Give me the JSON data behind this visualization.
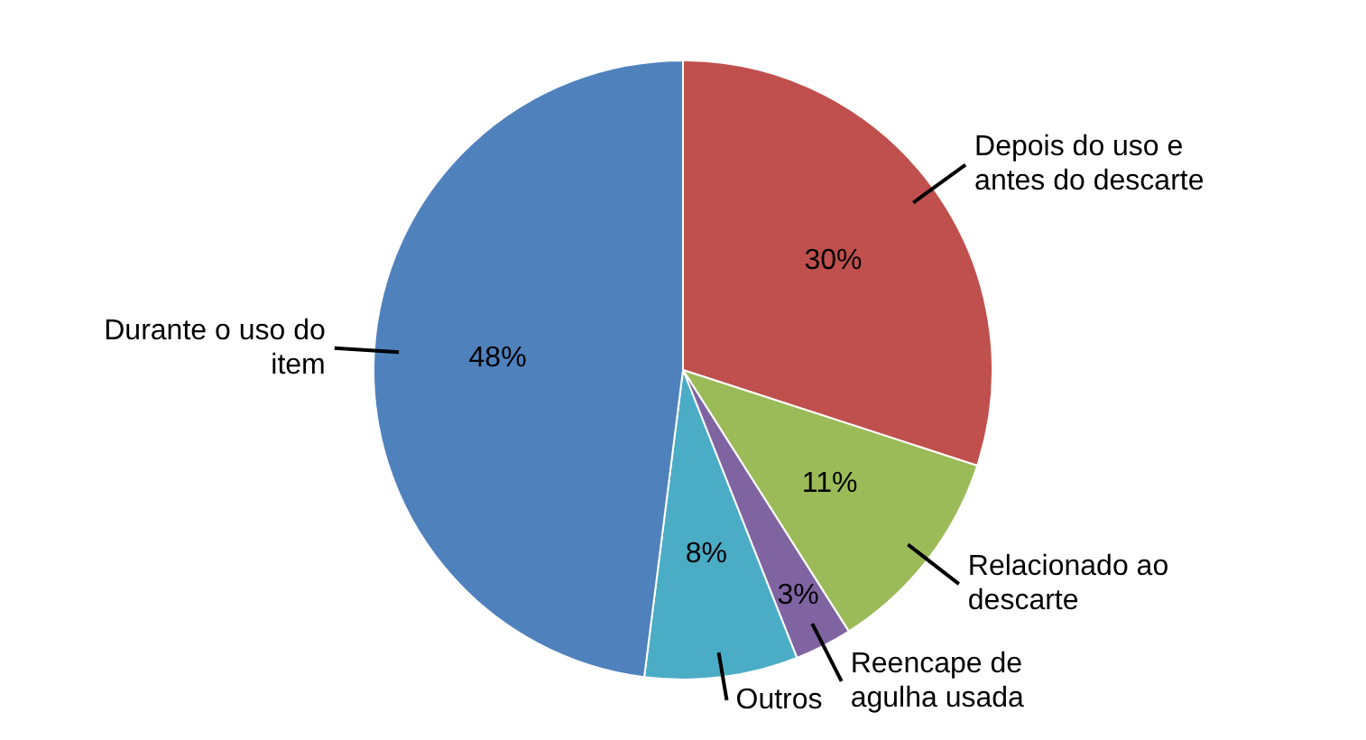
{
  "chart_data": {
    "type": "pie",
    "categories": [
      "Depois do uso e antes do descarte",
      "Relacionado ao descarte",
      "Reencape de agulha usada",
      "Outros",
      "Durante o uso do item"
    ],
    "values": [
      30,
      11,
      3,
      8,
      48
    ],
    "value_labels": [
      "30%",
      "11%",
      "3%",
      "8%",
      "48%"
    ],
    "colors": [
      "#c0504d",
      "#9bbb59",
      "#8064a2",
      "#4bacc6",
      "#4f81bd"
    ],
    "legend": false
  }
}
